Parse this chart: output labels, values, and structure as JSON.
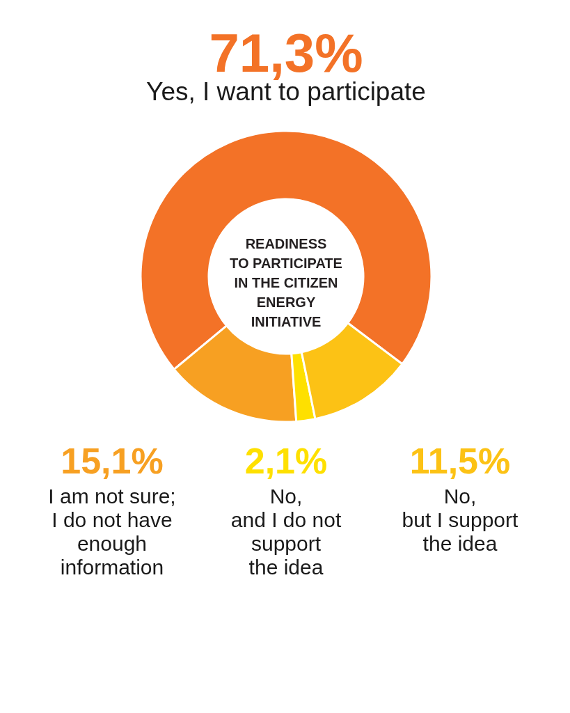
{
  "chart_data": {
    "type": "donut",
    "title": "READINESS\nTO PARTICIPATE\nIN THE CITIZEN\nENERGY\nINITIATIVE",
    "categories": [
      "Yes, I want to participate",
      "I am not sure;\nI do not have\nenough\ninformation",
      "No,\nand I do not\nsupport\nthe idea",
      "No,\nbut I support\nthe idea"
    ],
    "values": [
      71.3,
      15.1,
      2.1,
      11.5
    ],
    "colors": [
      "#f37227",
      "#f7a022",
      "#fee000",
      "#fcc215"
    ],
    "value_labels": [
      "71,3%",
      "15,1%",
      "2,1%",
      "11,5%"
    ]
  }
}
